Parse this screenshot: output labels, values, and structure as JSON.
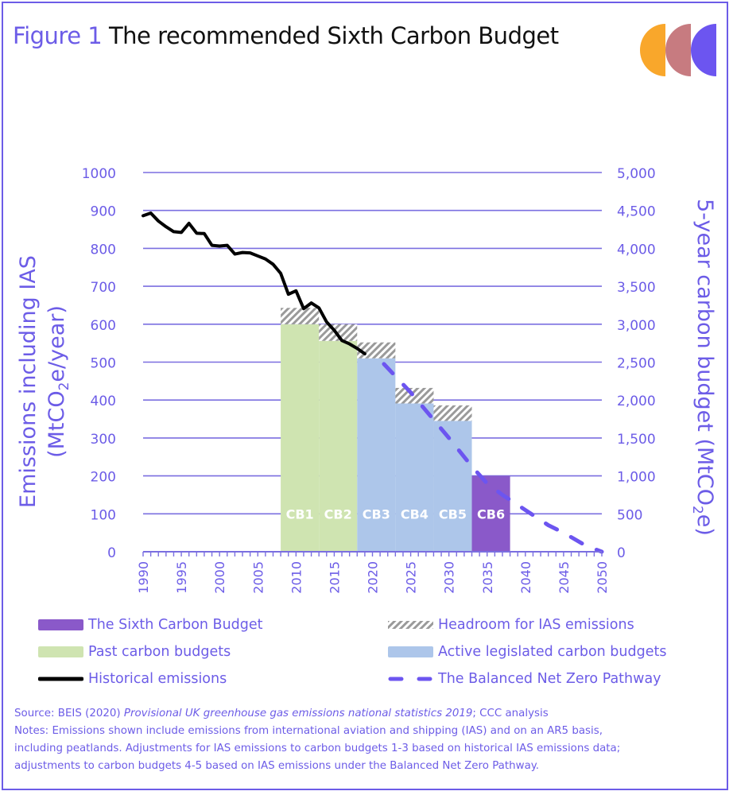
{
  "header": {
    "figure_label": "Figure 1",
    "title": "The recommended Sixth Carbon Budget",
    "logo_colors": [
      "#f9a72b",
      "#c77b80",
      "#6c55f0"
    ]
  },
  "colors": {
    "accent": "#6c5ce7",
    "axis_text": "#6c5ce7",
    "gridline": "#7b6fe0",
    "sixth_budget": "#8a59c9",
    "past_budgets": "#cfe4b1",
    "active_budgets": "#adc6ea",
    "headroom": "#9a9a9a",
    "historical": "#000000",
    "pathway": "#6c55f0"
  },
  "chart_data": {
    "type": "bar+line",
    "title": "The recommended Sixth Carbon Budget",
    "ylabel": "Emissions including IAS (MtCO2e/year)",
    "ylabel_parts": [
      "Emissions including IAS",
      "(MtCO",
      "2",
      "e/year)"
    ],
    "y2label": "5-year carbon budget (MtCO2e)",
    "y2label_parts": [
      "5-year carbon budget (MtCO",
      "2",
      "e)"
    ],
    "xlim": [
      1990,
      2050
    ],
    "ylim": [
      0,
      1000
    ],
    "y2lim": [
      0,
      5000
    ],
    "x_ticks": [
      "1990",
      "1995",
      "2000",
      "2005",
      "2010",
      "2015",
      "2020",
      "2025",
      "2030",
      "2035",
      "2040",
      "2045",
      "2050"
    ],
    "y_ticks": [
      "0",
      "100",
      "200",
      "300",
      "400",
      "500",
      "600",
      "700",
      "800",
      "900",
      "1000"
    ],
    "y2_ticks": [
      "0",
      "500",
      "1,000",
      "1,500",
      "2,000",
      "2,500",
      "3,000",
      "3,500",
      "4,000",
      "4,500",
      "5,000"
    ],
    "grid": true,
    "budgets": [
      {
        "label": "CB1",
        "start": 2008,
        "end": 2013,
        "value": 600,
        "headroom_top": 643,
        "kind": "past"
      },
      {
        "label": "CB2",
        "start": 2013,
        "end": 2018,
        "value": 556,
        "headroom_top": 600,
        "kind": "past"
      },
      {
        "label": "CB3",
        "start": 2018,
        "end": 2023,
        "value": 510,
        "headroom_top": 552,
        "kind": "active"
      },
      {
        "label": "CB4",
        "start": 2023,
        "end": 2028,
        "value": 391,
        "headroom_top": 432,
        "kind": "active"
      },
      {
        "label": "CB5",
        "start": 2028,
        "end": 2033,
        "value": 345,
        "headroom_top": 386,
        "kind": "active"
      },
      {
        "label": "CB6",
        "start": 2033,
        "end": 2038,
        "value": 200,
        "headroom_top": null,
        "kind": "sixth"
      }
    ],
    "series": [
      {
        "name": "Historical emissions",
        "x": [
          1990,
          1991,
          1992,
          1993,
          1994,
          1995,
          1996,
          1997,
          1998,
          1999,
          2000,
          2001,
          2002,
          2003,
          2004,
          2005,
          2006,
          2007,
          2008,
          2009,
          2010,
          2011,
          2012,
          2013,
          2014,
          2015,
          2016,
          2017,
          2018,
          2019
        ],
        "values": [
          886,
          893,
          872,
          857,
          844,
          842,
          866,
          840,
          839,
          808,
          806,
          808,
          785,
          789,
          788,
          780,
          772,
          758,
          734,
          679,
          688,
          641,
          656,
          643,
          606,
          584,
          557,
          548,
          536,
          522
        ]
      },
      {
        "name": "The Balanced Net Zero Pathway",
        "x": [
          2021.5,
          2025,
          2030,
          2033,
          2035,
          2037,
          2040,
          2043,
          2045,
          2048,
          2050
        ],
        "values": [
          495,
          420,
          300,
          225,
          180,
          150,
          110,
          70,
          50,
          15,
          0
        ]
      }
    ],
    "legend": {
      "position": "bottom",
      "items": [
        {
          "label": "The Sixth Carbon Budget",
          "type": "fill",
          "key": "sixth_budget"
        },
        {
          "label": "Headroom for IAS emissions",
          "type": "hatch",
          "key": "headroom"
        },
        {
          "label": "Past carbon budgets",
          "type": "fill",
          "key": "past_budgets"
        },
        {
          "label": "Active legislated carbon budgets",
          "type": "fill",
          "key": "active_budgets"
        },
        {
          "label": "Historical emissions",
          "type": "line",
          "key": "historical"
        },
        {
          "label": "The Balanced Net Zero Pathway",
          "type": "dash",
          "key": "pathway"
        }
      ]
    }
  },
  "footer": {
    "source_prefix": "Source: BEIS (2020) ",
    "source_italic": "Provisional UK greenhouse gas emissions national statistics 2019",
    "source_suffix": "; CCC analysis",
    "notes": [
      "Notes: Emissions shown include emissions from international aviation and shipping (IAS) and on an AR5 basis,",
      "including peatlands. Adjustments for IAS emissions to carbon budgets 1-3 based on historical IAS emissions data;",
      "adjustments to carbon budgets 4-5 based on IAS emissions under the Balanced Net Zero Pathway."
    ]
  }
}
